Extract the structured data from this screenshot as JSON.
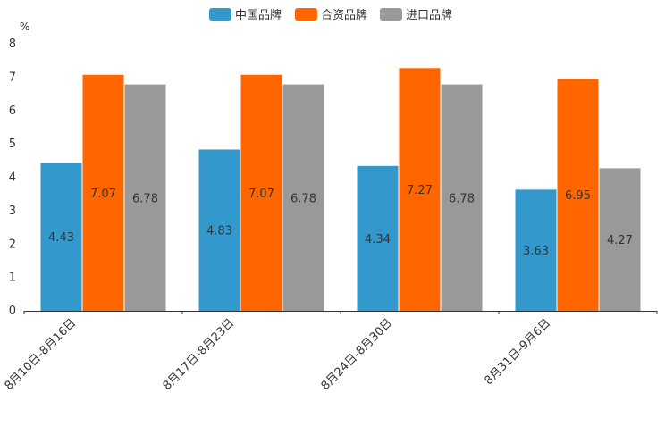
{
  "chart_data": {
    "type": "bar",
    "title": "",
    "ylabel": "%",
    "xlabel": "",
    "ylim": [
      0,
      8
    ],
    "yticks": [
      0,
      1,
      2,
      3,
      4,
      5,
      6,
      7,
      8
    ],
    "categories": [
      "8月10日-8月16日",
      "8月17日-8月23日",
      "8月24日-8月30日",
      "8月31日-9月6日"
    ],
    "series": [
      {
        "name": "中国品牌",
        "color": "#3399cc",
        "values": [
          4.43,
          4.83,
          4.34,
          3.63
        ]
      },
      {
        "name": "合资品牌",
        "color": "#ff6600",
        "values": [
          7.07,
          7.07,
          7.27,
          6.95
        ]
      },
      {
        "name": "进口品牌",
        "color": "#999999",
        "values": [
          6.78,
          6.78,
          6.78,
          4.27
        ]
      }
    ],
    "legend_position": "top-center",
    "grid": false
  }
}
